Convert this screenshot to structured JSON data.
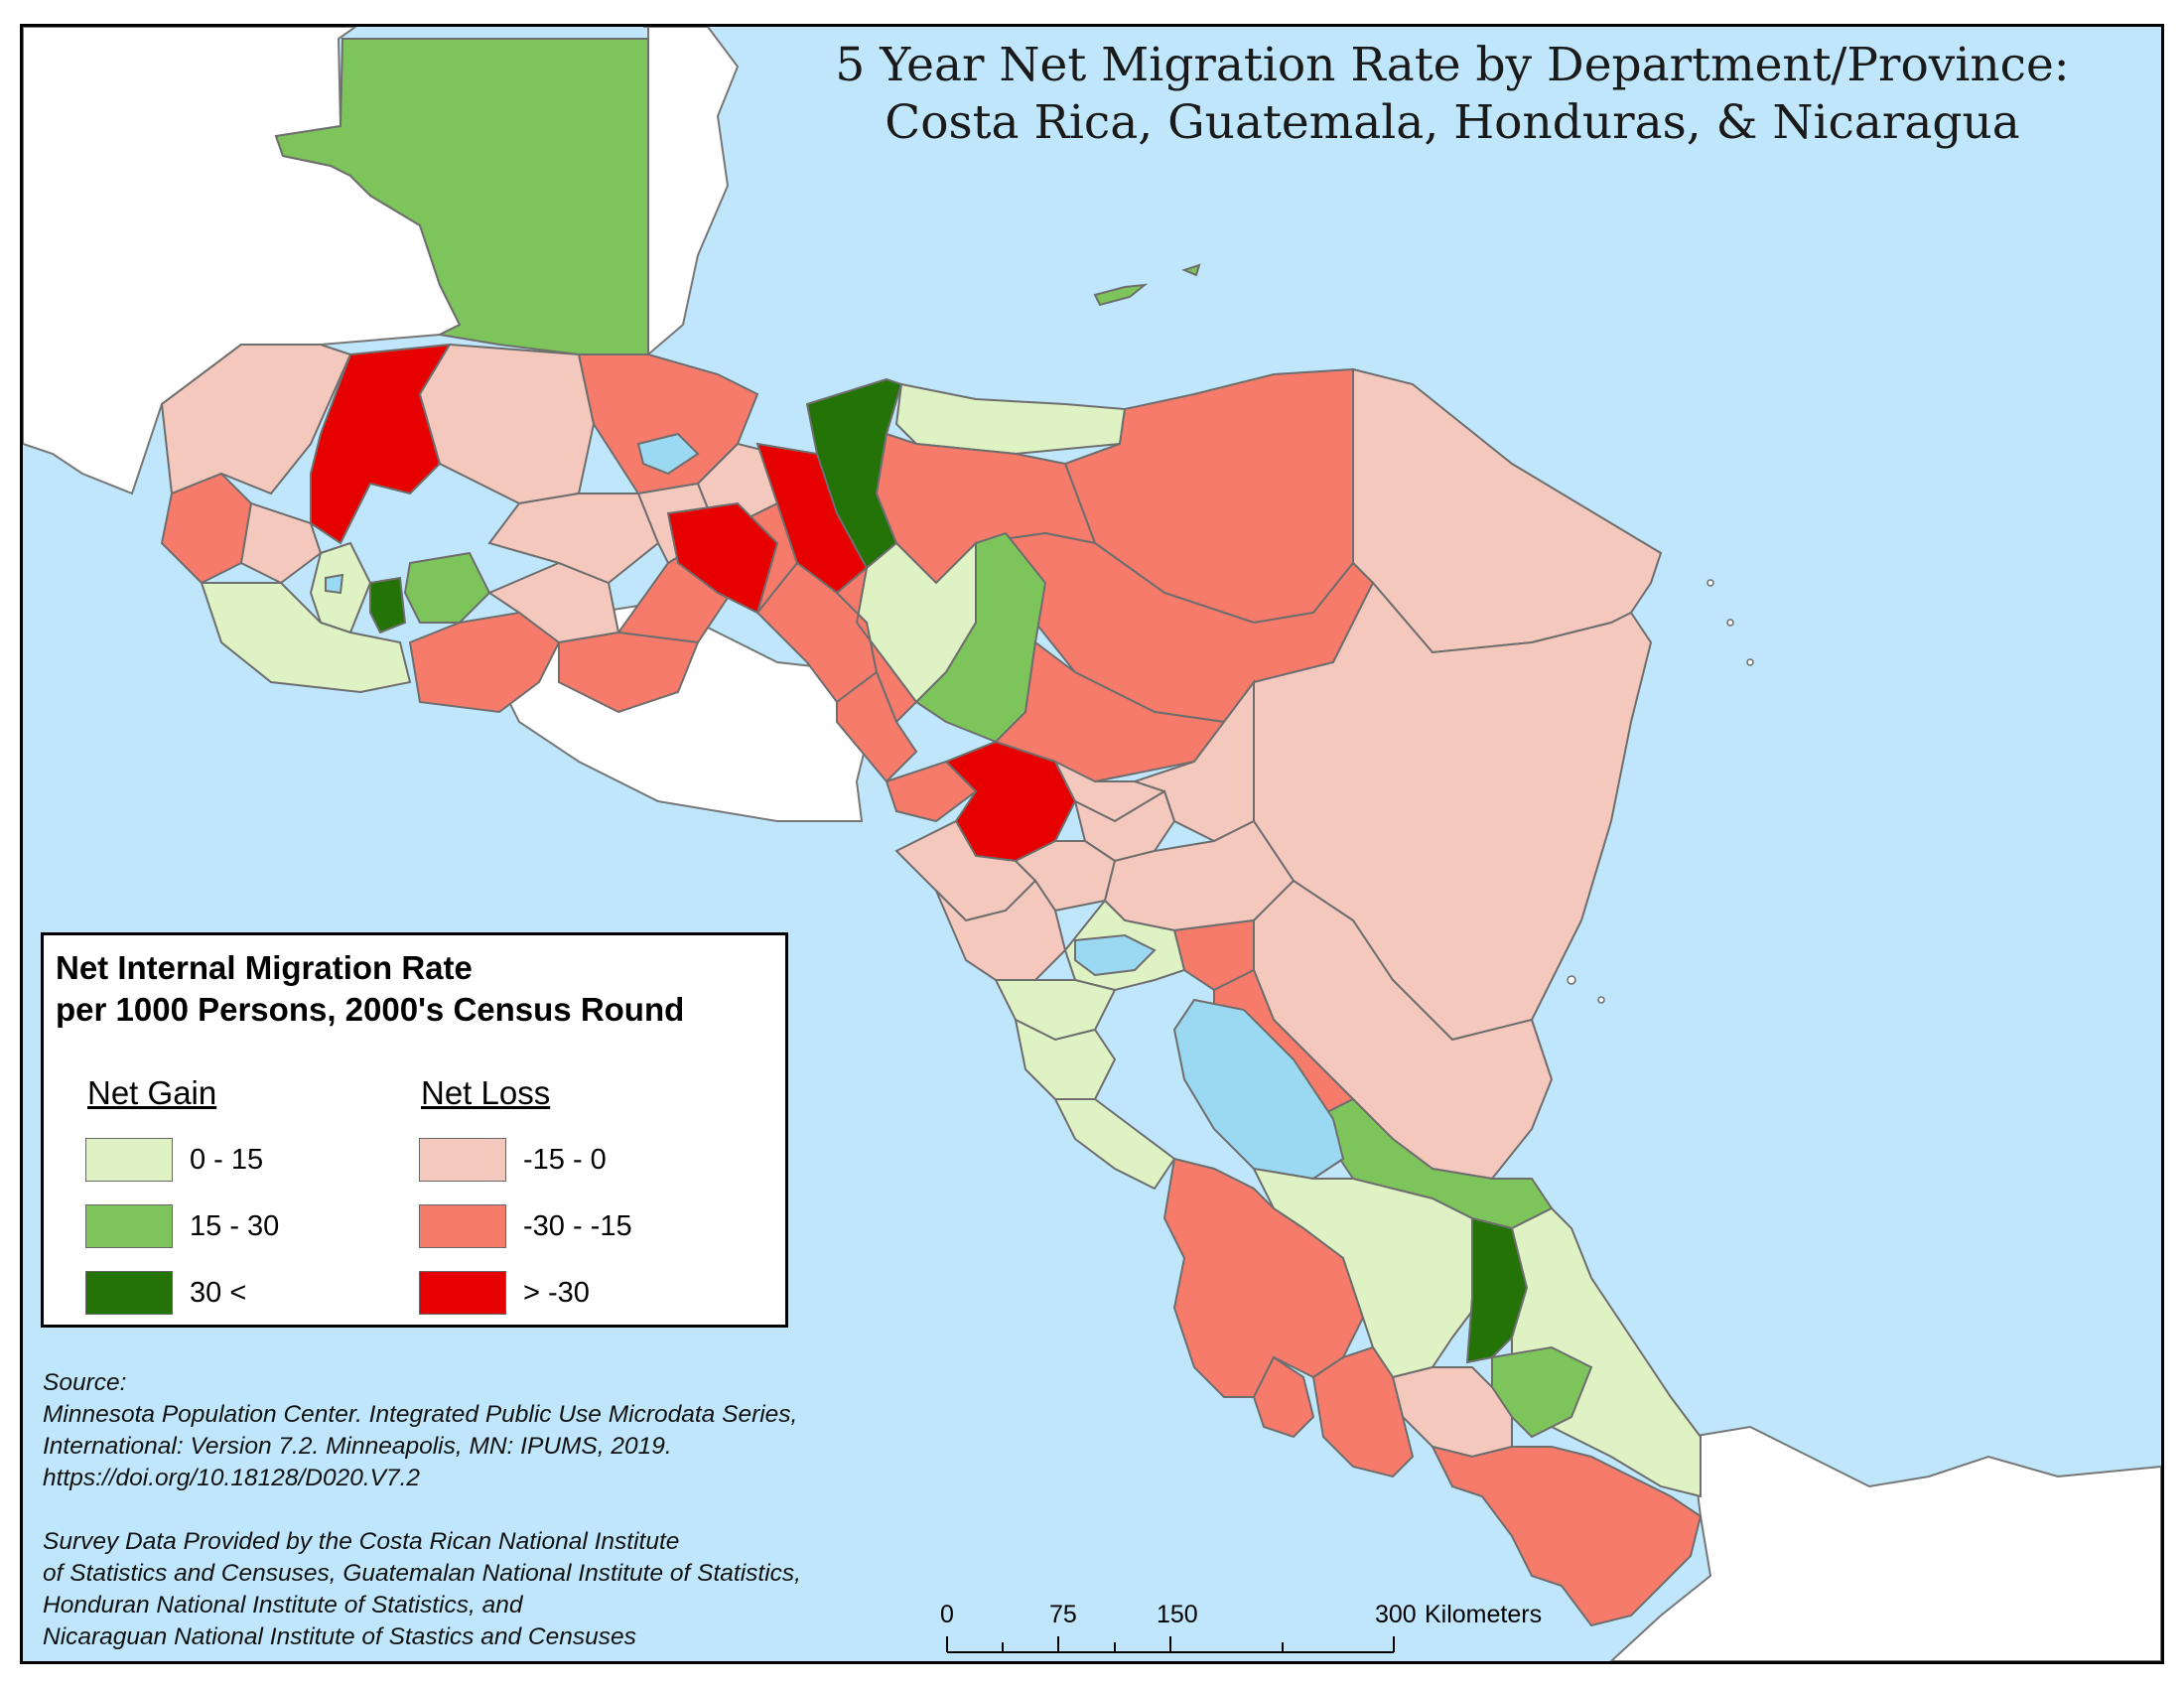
{
  "title": {
    "line1": "5 Year Net Migration Rate by Department/Province:",
    "line2": "Costa Rica, Guatemala, Honduras, & Nicaragua"
  },
  "legend": {
    "title_line1": "Net Internal Migration Rate",
    "title_line2": "per 1000 Persons, 2000's Census Round",
    "gain_heading": "Net Gain",
    "loss_heading": "Net Loss",
    "gain_classes": [
      {
        "label": "0 - 15",
        "color": "#dff2c4"
      },
      {
        "label": "15 - 30",
        "color": "#7dc55a"
      },
      {
        "label": "30 <",
        "color": "#237306"
      }
    ],
    "loss_classes": [
      {
        "label": "-15 - 0",
        "color": "#f5c8bd"
      },
      {
        "label": "-30 - -15",
        "color": "#f67b6b"
      },
      {
        "label": "> -30",
        "color": "#e60000"
      }
    ]
  },
  "source": {
    "label": "Source:",
    "citation_lines": [
      "Minnesota Population Center. Integrated Public Use Microdata Series,",
      "International: Version 7.2. Minneapolis, MN: IPUMS, 2019.",
      "https://doi.org/10.18128/D020.V7.2"
    ],
    "provider_lines": [
      "Survey Data Provided by the Costa Rican National Institute",
      "of Statistics and Censuses, Guatemalan National Institute of Statistics,",
      "Honduran National Institute of Statistics, and",
      "Nicaraguan National Institute of Stastics and Censuses"
    ]
  },
  "scale_bar": {
    "ticks": [
      "0",
      "75",
      "150",
      "300"
    ],
    "unit": "Kilometers"
  },
  "colors": {
    "water": "#bfe6fb",
    "lake": "#9ad9f1",
    "other_land": "#ffffff",
    "border": "#6e6e6e"
  }
}
